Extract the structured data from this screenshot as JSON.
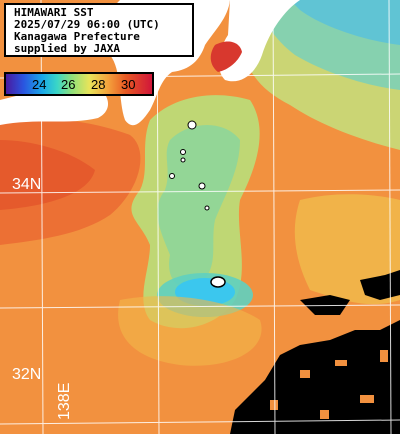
{
  "title_lines": [
    "HIMAWARI SST",
    "2025/07/29 06:00 (UTC)",
    "Kanagawa Prefecture",
    "supplied by JAXA"
  ],
  "legend": {
    "ticks": [
      "24",
      "26",
      "28",
      "30"
    ]
  },
  "grid_labels": {
    "lat_34": "34N",
    "lat_32": "32N",
    "lon_138": "138E"
  },
  "colors": {
    "warm_sea": "#f28a3e",
    "hot_sea": "#e8582a",
    "cool_sea": "#86d8a4",
    "cold_spot": "#39c6f0",
    "land": "#ffffff",
    "no_data": "#000000"
  }
}
